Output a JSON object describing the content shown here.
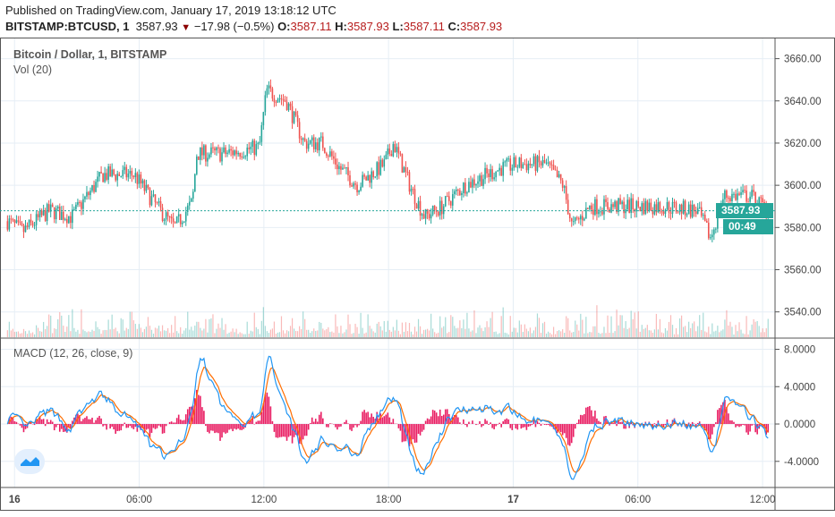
{
  "header": {
    "published": "Published on TradingView.com, January 17, 2019 13:18:12 UTC",
    "symbol": "BITSTAMP:BTCUSD, 1",
    "last": "3587.93",
    "change": "−17.98 (−0.5%)",
    "o_label": "O:",
    "o": "3587.11",
    "h_label": "H:",
    "h": "3587.93",
    "l_label": "L:",
    "l": "3587.11",
    "c_label": "C:",
    "c": "3587.93"
  },
  "pane": {
    "title": "Bitcoin / Dollar, 1, BITSTAMP",
    "vol": "Vol (20)",
    "macd": "MACD (12, 26, close, 9)",
    "price_label": "3587.93",
    "countdown": "00:49"
  },
  "colors": {
    "up": "#26a69a",
    "down": "#ef5350",
    "macd": "#2196f3",
    "signal": "#ff6d00",
    "hist": "#e91e63",
    "grid": "#e6eef5"
  },
  "chart_data": {
    "type": "candlestick",
    "title": "Bitcoin / Dollar, 1, BITSTAMP",
    "price_ylim": [
      3528,
      3670
    ],
    "price_ticks": [
      "3660.00",
      "3640.00",
      "3620.00",
      "3600.00",
      "3580.00",
      "3560.00",
      "3540.00"
    ],
    "price_tick_values": [
      3660,
      3640,
      3620,
      3600,
      3580,
      3560,
      3540
    ],
    "macd_ylim": [
      -6.8,
      9.2
    ],
    "macd_ticks": [
      "8.0000",
      "4.0000",
      "0.0000",
      "-4.0000"
    ],
    "macd_tick_values": [
      8,
      4,
      0,
      -4
    ],
    "time_ticks": [
      "16",
      "06:00",
      "12:00",
      "18:00",
      "17",
      "06:00",
      "12:00"
    ],
    "time_tick_hours": [
      0,
      6,
      12,
      18,
      24,
      30,
      36
    ],
    "xlim_hours": [
      -0.7,
      36.6
    ],
    "close_path_hours": [
      -0.34,
      0.39,
      1.68,
      2.75,
      4.26,
      5.76,
      6.84,
      7.7,
      8.56,
      8.77,
      10.06,
      11.78,
      12.13,
      13.08,
      13.94,
      14.8,
      15.66,
      16.52,
      17.8,
      18.24,
      19.1,
      19.74,
      20.6,
      21.68,
      23.4,
      24.26,
      25.55,
      26.4,
      26.84,
      27.7,
      29.4,
      31.1,
      32.86,
      33.5,
      34.15,
      35.44,
      36.3
    ],
    "close_path_values": [
      3583,
      3578,
      3588,
      3585,
      3605,
      3605,
      3590,
      3580,
      3592,
      3615,
      3615,
      3618,
      3645,
      3640,
      3620,
      3620,
      3608,
      3600,
      3610,
      3620,
      3598,
      3585,
      3590,
      3600,
      3608,
      3610,
      3610,
      3600,
      3580,
      3590,
      3590,
      3590,
      3588,
      3575,
      3595,
      3595,
      3587.93
    ]
  }
}
